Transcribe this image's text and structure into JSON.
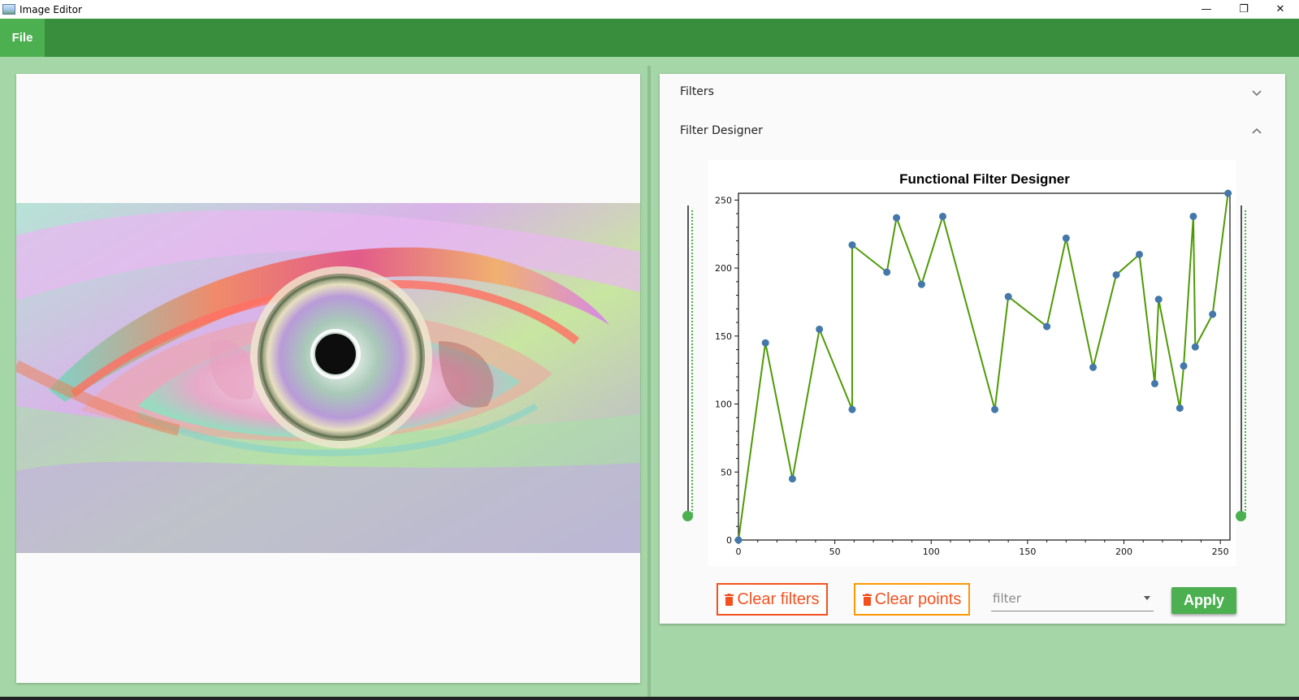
{
  "window": {
    "title": "Image Editor",
    "minimize_glyph": "—",
    "maximize_glyph": "❐",
    "close_glyph": "✕"
  },
  "menu": {
    "file_label": "File"
  },
  "panel": {
    "filters_header": "Filters",
    "filter_designer_header": "Filter Designer"
  },
  "chart_data": {
    "type": "line",
    "title": "Functional Filter Designer",
    "xlabel": "",
    "ylabel": "",
    "xlim": [
      0,
      255
    ],
    "ylim": [
      0,
      255
    ],
    "x_ticks": [
      0,
      50,
      100,
      150,
      200,
      250
    ],
    "y_ticks": [
      0,
      50,
      100,
      150,
      200,
      250
    ],
    "grid": false,
    "series": [
      {
        "color": "#4e9a06",
        "marker_color": "#4477aa",
        "points": [
          [
            0,
            0
          ],
          [
            14,
            145
          ],
          [
            28,
            45
          ],
          [
            42,
            155
          ],
          [
            59,
            96
          ],
          [
            59,
            217
          ],
          [
            77,
            197
          ],
          [
            82,
            237
          ],
          [
            95,
            188
          ],
          [
            106,
            238
          ],
          [
            133,
            96
          ],
          [
            140,
            179
          ],
          [
            160,
            157
          ],
          [
            170,
            222
          ],
          [
            184,
            127
          ],
          [
            196,
            195
          ],
          [
            208,
            210
          ],
          [
            216,
            115
          ],
          [
            218,
            177
          ],
          [
            229,
            97
          ],
          [
            231,
            128
          ],
          [
            236,
            238
          ],
          [
            237,
            142
          ],
          [
            246,
            166
          ],
          [
            254,
            255
          ]
        ]
      }
    ]
  },
  "sliders": {
    "left_value": 0,
    "right_value": 0
  },
  "controls": {
    "clear_filters_label": "Clear filters",
    "clear_points_label": "Clear points",
    "filter_placeholder": "filter",
    "apply_label": "Apply"
  },
  "colors": {
    "menubar": "#388e3c",
    "file_active": "#4caf50",
    "background": "#a5d6a7",
    "clear_filters": "#f4511e",
    "clear_points_border": "#ff9800",
    "apply": "#4caf50"
  }
}
